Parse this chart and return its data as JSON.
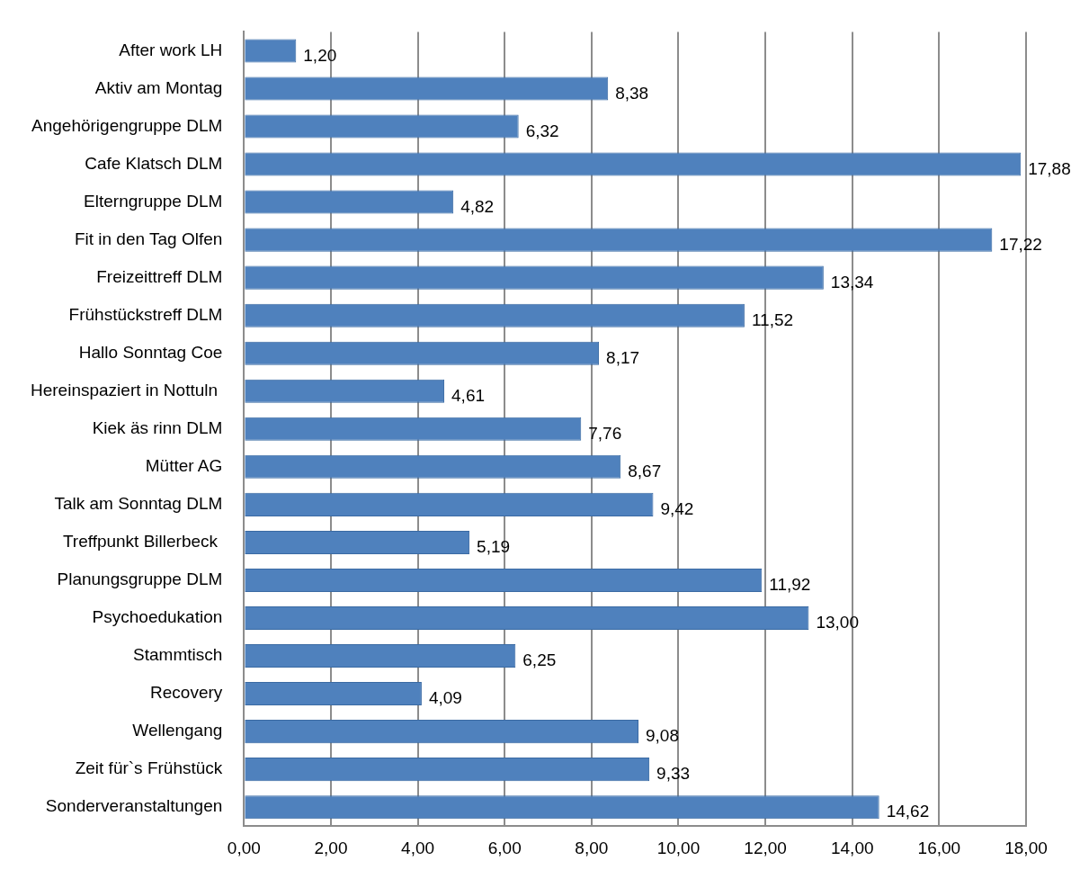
{
  "chart_data": {
    "type": "bar",
    "orientation": "horizontal",
    "categories": [
      "After work LH",
      "Aktiv am Montag",
      "Angehörigengruppe DLM",
      "Cafe Klatsch DLM",
      "Elterngruppe DLM",
      "Fit in den Tag Olfen",
      "Freizeittreff DLM",
      "Frühstückstreff DLM",
      "Hallo Sonntag Coe",
      "Hereinspaziert in Nottuln ",
      "Kiek äs rinn DLM",
      "Mütter AG",
      "Talk am Sonntag DLM",
      "Treffpunkt Billerbeck ",
      "Planungsgruppe DLM",
      "Psychoedukation",
      "Stammtisch",
      "Recovery",
      "Wellengang",
      "Zeit für`s Frühstück",
      "Sonderveranstaltungen"
    ],
    "values": [
      1.2,
      8.38,
      6.32,
      17.88,
      4.82,
      17.22,
      13.34,
      11.52,
      8.17,
      4.61,
      7.76,
      8.67,
      9.42,
      5.19,
      11.92,
      13.0,
      6.25,
      4.09,
      9.08,
      9.33,
      14.62
    ],
    "value_labels": [
      "1,20",
      "8,38",
      "6,32",
      "17,88",
      "4,82",
      "17,22",
      "13,34",
      "11,52",
      "8,17",
      "4,61",
      "7,76",
      "8,67",
      "9,42",
      "5,19",
      "11,92",
      "13,00",
      "6,25",
      "4,09",
      "9,08",
      "9,33",
      "14,62"
    ],
    "color": "#4f81bd",
    "xlim": [
      0,
      18
    ],
    "xticks": [
      {
        "value": 0,
        "label": "0,00"
      },
      {
        "value": 2,
        "label": "2,00"
      },
      {
        "value": 4,
        "label": "4,00"
      },
      {
        "value": 6,
        "label": "6,00"
      },
      {
        "value": 8,
        "label": "8,00"
      },
      {
        "value": 10,
        "label": "10,00"
      },
      {
        "value": 12,
        "label": "12,00"
      },
      {
        "value": 14,
        "label": "14,00"
      },
      {
        "value": 16,
        "label": "16,00"
      },
      {
        "value": 18,
        "label": "18,00"
      }
    ],
    "grid": "x",
    "legend": false
  }
}
